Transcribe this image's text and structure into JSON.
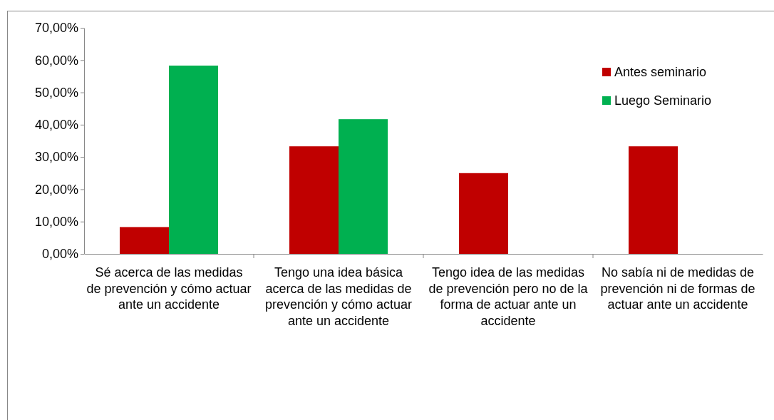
{
  "chart_data": {
    "type": "bar",
    "categories": [
      "Sé acerca de las medidas de prevención y cómo actuar ante un accidente",
      "Tengo una idea básica acerca de las medidas de prevención y cómo actuar ante un accidente",
      "Tengo idea de las medidas de prevención pero no de la forma de actuar ante un accidente",
      "No sabía ni de medidas de prevención ni de formas de actuar ante un accidente"
    ],
    "series": [
      {
        "name": "Antes seminario",
        "color": "#c00000",
        "values": [
          8.3,
          33.3,
          25,
          33.3
        ]
      },
      {
        "name": "Luego Seminario",
        "color": "#00b050",
        "values": [
          58.3,
          41.7,
          0,
          0
        ]
      }
    ],
    "ylim": [
      0,
      70
    ],
    "yticks": [
      {
        "value": 0,
        "label": "0,00%"
      },
      {
        "value": 10,
        "label": "10,00%"
      },
      {
        "value": 20,
        "label": "20,00%"
      },
      {
        "value": 30,
        "label": "30,00%"
      },
      {
        "value": 40,
        "label": "40,00%"
      },
      {
        "value": 50,
        "label": "50,00%"
      },
      {
        "value": 60,
        "label": "60,00%"
      },
      {
        "value": 70,
        "label": "70,00%"
      }
    ],
    "grid": false,
    "legend": "top right"
  }
}
